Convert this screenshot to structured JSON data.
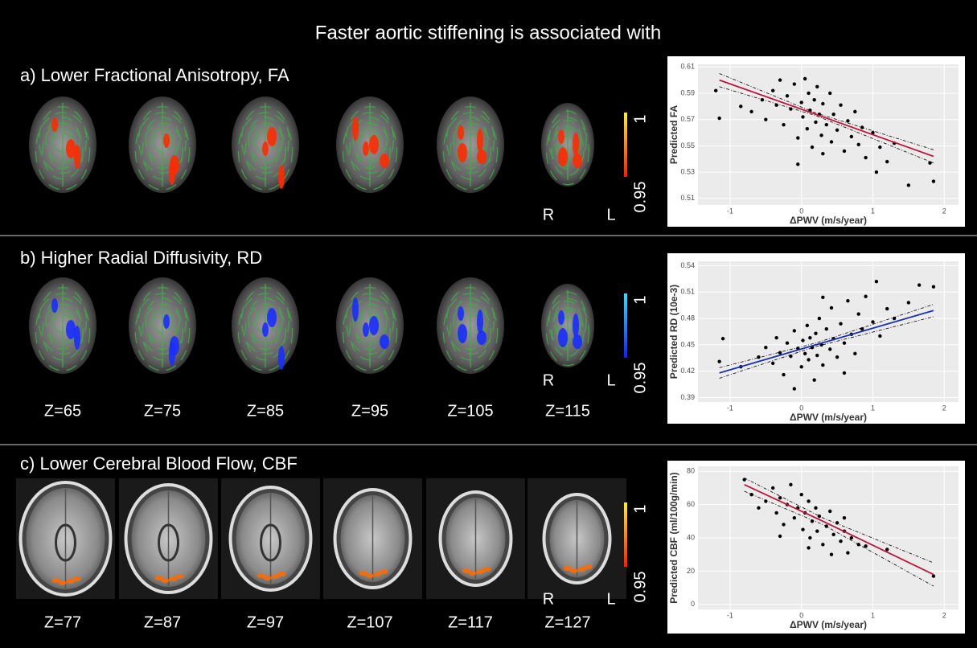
{
  "figure": {
    "title": "Faster aortic stiffening is associated with",
    "panels": [
      {
        "label": "a) Lower Fractional Anisotropy, FA",
        "slices": [],
        "colorbar": {
          "ticks": [
            1,
            0.95
          ],
          "colormap": [
            "#ff1a00",
            "#ffee33"
          ]
        },
        "sides": [
          "R",
          "L"
        ]
      },
      {
        "label": "b) Higher Radial Diffusivity, RD",
        "slices": [
          "Z=65",
          "Z=75",
          "Z=85",
          "Z=95",
          "Z=105",
          "Z=115"
        ],
        "colorbar": {
          "ticks": [
            1,
            0.95
          ],
          "colormap": [
            "#1020ff",
            "#30e0ff"
          ]
        },
        "sides": [
          "R",
          "L"
        ]
      },
      {
        "label": "c) Lower Cerebral Blood Flow, CBF",
        "slices": [
          "Z=77",
          "Z=87",
          "Z=97",
          "Z=107",
          "Z=117",
          "Z=127"
        ],
        "colorbar": {
          "ticks": [
            1,
            0.95
          ],
          "colormap": [
            "#ff1a00",
            "#ffee33"
          ]
        },
        "sides": [
          "R",
          "L"
        ]
      }
    ]
  },
  "chart_data": [
    {
      "type": "scatter",
      "xlabel": "ΔPWV (m/s/year)",
      "ylabel": "Predicted FA",
      "xlim": [
        -1.45,
        2.2
      ],
      "xticks": [
        -1,
        0,
        1,
        2
      ],
      "ylim": [
        0.505,
        0.612
      ],
      "yticks": [
        0.51,
        0.53,
        0.55,
        0.57,
        0.59,
        0.61
      ],
      "grid": true,
      "color": "#000000",
      "x": [
        -1.15,
        -1.2,
        -0.85,
        -0.7,
        -0.55,
        -0.5,
        -0.4,
        -0.35,
        -0.3,
        -0.25,
        -0.2,
        -0.15,
        -0.1,
        -0.05,
        0,
        0.02,
        0.05,
        0.08,
        0.1,
        0.12,
        0.15,
        0.18,
        0.2,
        0.22,
        0.25,
        0.28,
        0.3,
        0.35,
        0.4,
        0.42,
        0.45,
        0.5,
        0.55,
        0.6,
        0.65,
        0.7,
        0.75,
        0.8,
        0.85,
        0.9,
        1.0,
        1.05,
        1.1,
        1.2,
        1.3,
        1.5,
        1.8,
        1.85,
        -0.05,
        0.3
      ],
      "values": [
        0.571,
        0.592,
        0.58,
        0.576,
        0.585,
        0.57,
        0.592,
        0.581,
        0.6,
        0.566,
        0.588,
        0.578,
        0.597,
        0.556,
        0.583,
        0.572,
        0.601,
        0.563,
        0.59,
        0.577,
        0.549,
        0.585,
        0.568,
        0.595,
        0.574,
        0.558,
        0.582,
        0.566,
        0.59,
        0.553,
        0.574,
        0.562,
        0.581,
        0.546,
        0.569,
        0.557,
        0.576,
        0.551,
        0.564,
        0.541,
        0.56,
        0.53,
        0.549,
        0.538,
        0.552,
        0.52,
        0.537,
        0.523,
        0.536,
        0.544
      ],
      "fit": {
        "color": "#c0143c",
        "x": [
          -1.15,
          0.2,
          1.85
        ],
        "values": [
          0.6,
          0.574,
          0.542
        ],
        "upper": [
          0.605,
          0.575,
          0.547
        ],
        "lower": [
          0.595,
          0.573,
          0.537
        ]
      }
    },
    {
      "type": "scatter",
      "xlabel": "ΔPWV (m/s/year)",
      "ylabel": "Predicted RD (10e-3)",
      "xlim": [
        -1.45,
        2.2
      ],
      "xticks": [
        -1,
        0,
        1,
        2
      ],
      "ylim": [
        0.385,
        0.545
      ],
      "yticks": [
        0.39,
        0.42,
        0.45,
        0.48,
        0.51,
        0.54
      ],
      "grid": true,
      "color": "#000000",
      "x": [
        -1.15,
        -1.1,
        -0.85,
        -0.6,
        -0.5,
        -0.4,
        -0.35,
        -0.3,
        -0.25,
        -0.2,
        -0.15,
        -0.1,
        -0.05,
        0,
        0.02,
        0.05,
        0.08,
        0.1,
        0.12,
        0.15,
        0.18,
        0.2,
        0.22,
        0.25,
        0.28,
        0.3,
        0.35,
        0.4,
        0.42,
        0.45,
        0.5,
        0.55,
        0.6,
        0.65,
        0.7,
        0.75,
        0.8,
        0.85,
        0.9,
        1.0,
        1.05,
        1.1,
        1.2,
        1.3,
        1.5,
        1.65,
        1.85,
        -0.1,
        0.3,
        0.6
      ],
      "values": [
        0.431,
        0.457,
        0.425,
        0.436,
        0.447,
        0.429,
        0.458,
        0.441,
        0.416,
        0.452,
        0.437,
        0.466,
        0.446,
        0.425,
        0.455,
        0.44,
        0.472,
        0.433,
        0.458,
        0.447,
        0.41,
        0.463,
        0.438,
        0.48,
        0.45,
        0.427,
        0.468,
        0.445,
        0.492,
        0.457,
        0.436,
        0.474,
        0.452,
        0.5,
        0.462,
        0.44,
        0.485,
        0.468,
        0.505,
        0.476,
        0.522,
        0.46,
        0.491,
        0.48,
        0.498,
        0.518,
        0.516,
        0.4,
        0.504,
        0.418
      ],
      "fit": {
        "color": "#1a2fb8",
        "x": [
          -1.15,
          0.2,
          1.85
        ],
        "values": [
          0.418,
          0.45,
          0.489
        ],
        "upper": [
          0.424,
          0.452,
          0.496
        ],
        "lower": [
          0.412,
          0.448,
          0.482
        ]
      }
    },
    {
      "type": "scatter",
      "xlabel": "ΔPWV (m/s/year)",
      "ylabel": "Predicted CBF (ml/100g/min)",
      "xlim": [
        -1.45,
        2.2
      ],
      "xticks": [
        -1,
        0,
        1,
        2
      ],
      "ylim": [
        -3,
        83
      ],
      "yticks": [
        0,
        20,
        40,
        60,
        80
      ],
      "grid": true,
      "color": "#000000",
      "x": [
        -0.8,
        -0.7,
        -0.6,
        -0.5,
        -0.4,
        -0.35,
        -0.3,
        -0.25,
        -0.2,
        -0.15,
        -0.1,
        -0.05,
        0,
        0.02,
        0.05,
        0.1,
        0.12,
        0.15,
        0.2,
        0.22,
        0.25,
        0.3,
        0.35,
        0.4,
        0.42,
        0.45,
        0.5,
        0.55,
        0.6,
        0.65,
        0.7,
        0.8,
        0.9,
        1.2,
        1.85,
        -0.3,
        0.1,
        0.6
      ],
      "values": [
        75,
        66,
        58,
        62,
        70,
        55,
        64,
        48,
        60,
        72,
        52,
        58,
        66,
        45,
        55,
        62,
        40,
        50,
        58,
        44,
        53,
        36,
        47,
        56,
        30,
        42,
        49,
        38,
        44,
        31,
        40,
        36,
        35,
        33,
        17,
        41,
        34,
        52
      ],
      "fit": {
        "color": "#c0143c",
        "x": [
          -0.8,
          0.3,
          1.85
        ],
        "values": [
          72,
          50,
          18
        ],
        "upper": [
          76,
          52,
          25
        ],
        "lower": [
          68,
          48,
          11
        ]
      }
    }
  ]
}
